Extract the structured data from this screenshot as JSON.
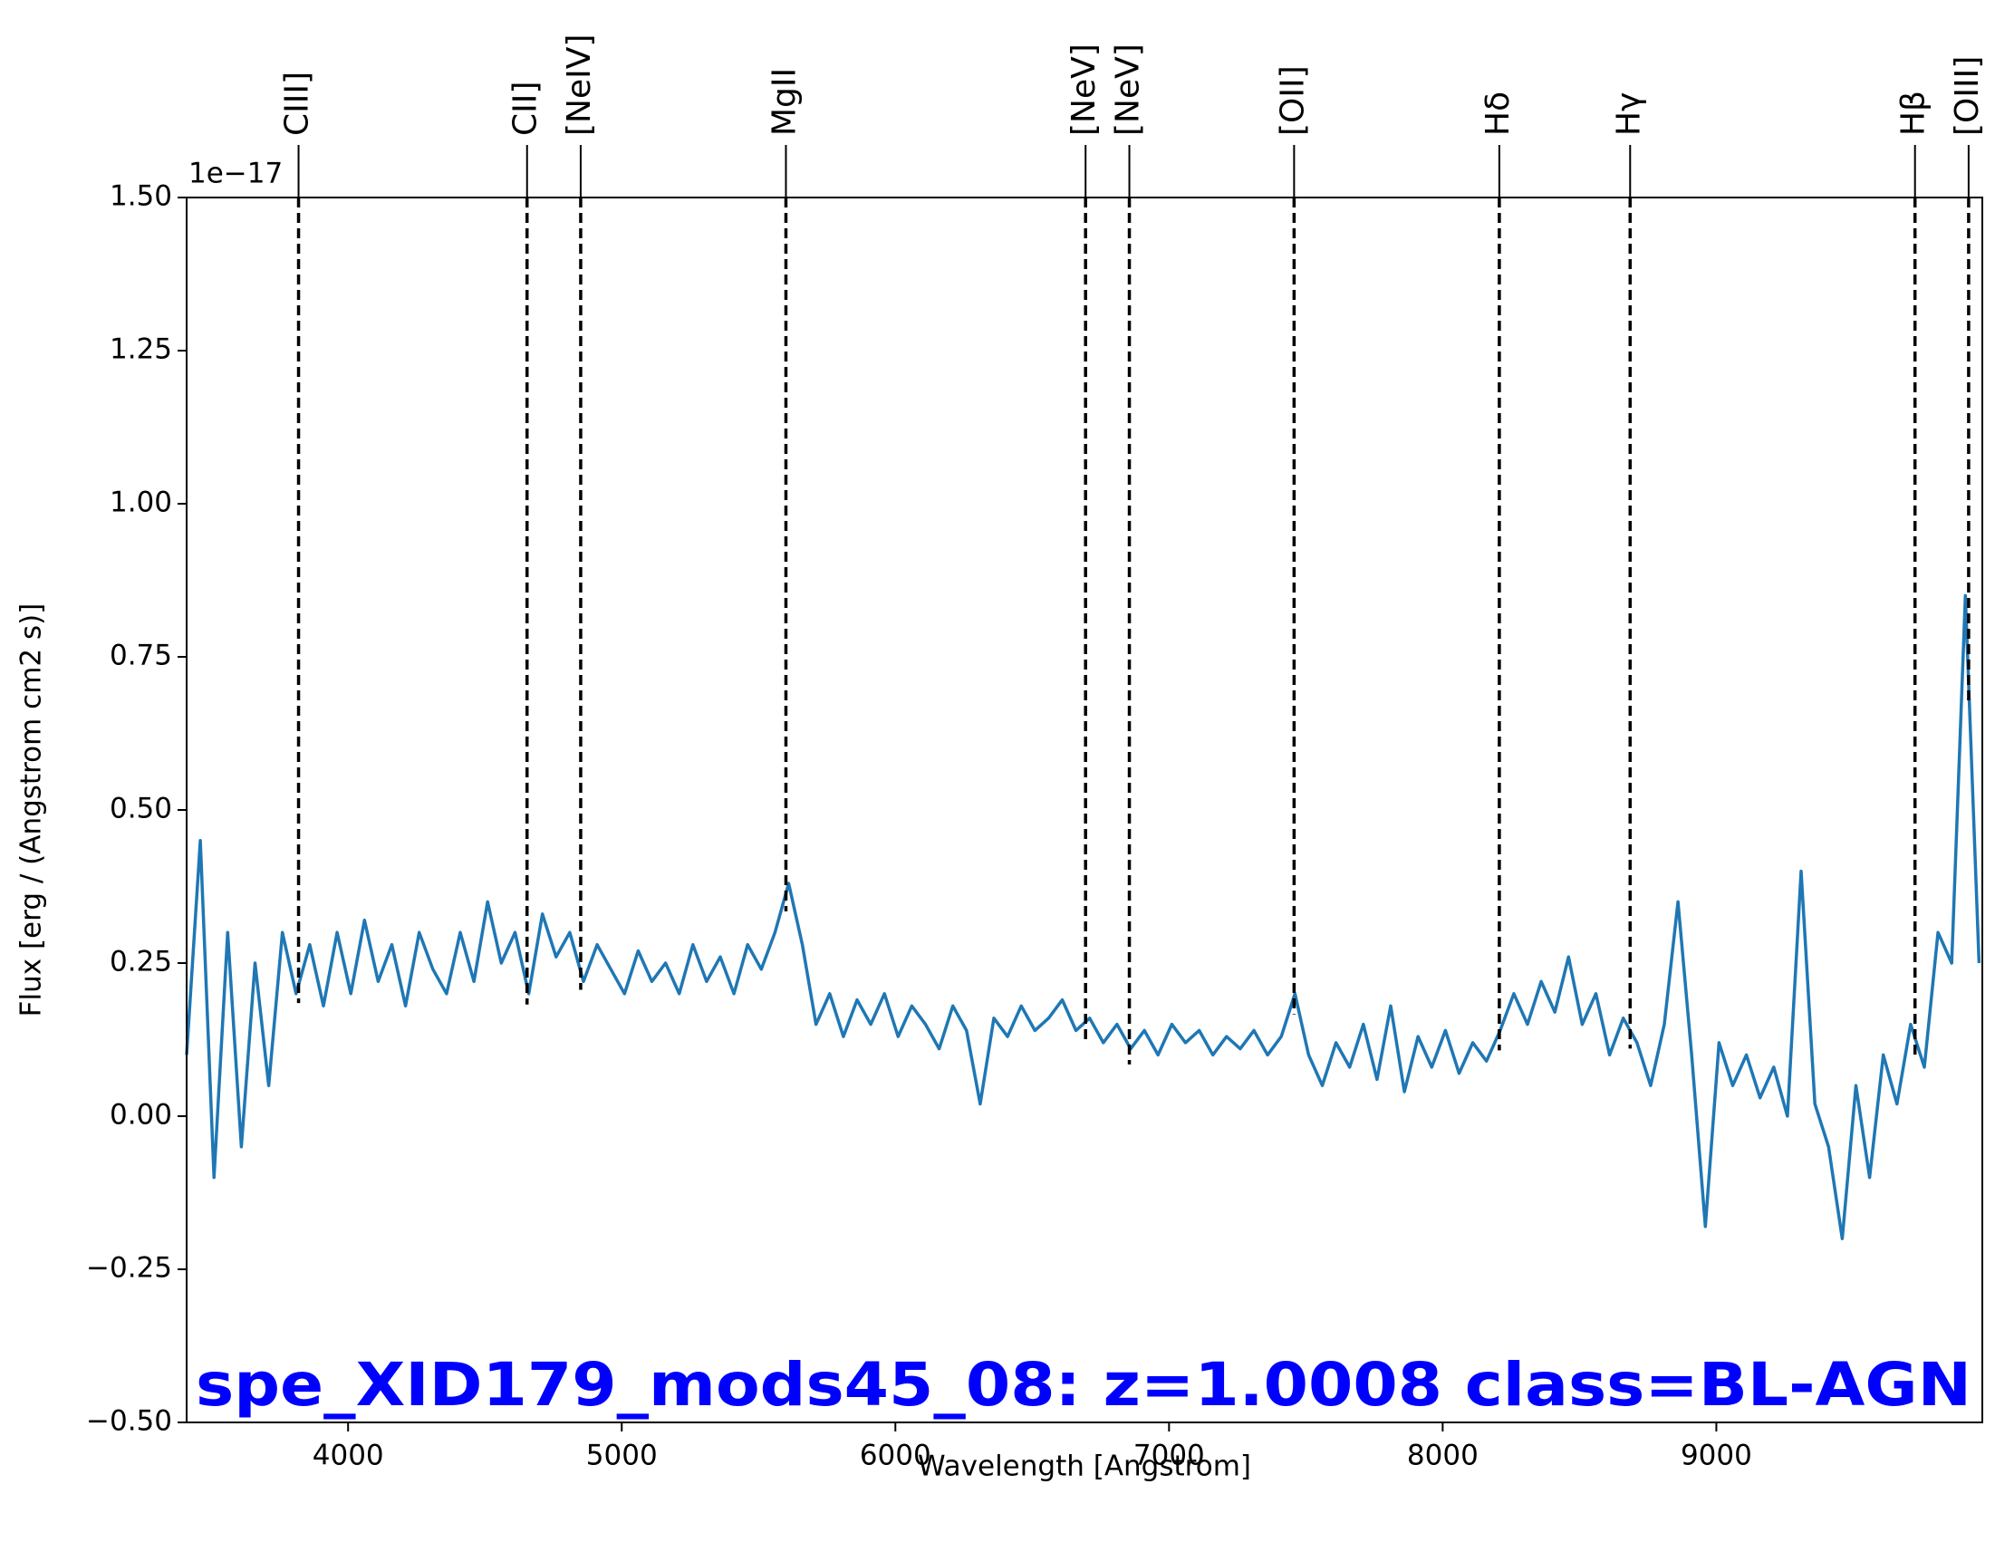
{
  "chart_data": {
    "type": "line",
    "annotation": "spe_XID179_mods45_08: z=1.0008 class=BL-AGN",
    "offset_text": "1e−17",
    "xlabel": "Wavelength [Angstrom]",
    "ylabel": "Flux [erg / (Angstrom cm2 s)]",
    "color": "#1f77b4",
    "xlim": [
      3410,
      9972
    ],
    "xticks": [
      4000,
      5000,
      6000,
      7000,
      8000,
      9000
    ],
    "ylim": [
      -0.5,
      1.5
    ],
    "yticks": [
      {
        "value": -0.5,
        "label": "−0.50"
      },
      {
        "value": -0.25,
        "label": "−0.25"
      },
      {
        "value": 0,
        "label": "0.00"
      },
      0.25,
      {
        "value": 0.5,
        "label": "0.50"
      },
      0.75,
      {
        "value": 1,
        "label": "1.00"
      },
      1.25,
      {
        "value": 1.5,
        "label": "1.50"
      }
    ],
    "grid": false,
    "lines": [
      {
        "label": "CIII]",
        "wavelength": 3819
      },
      {
        "label": "CII]",
        "wavelength": 4654
      },
      {
        "label": "[NeIV]",
        "wavelength": 4850
      },
      {
        "label": "MgII",
        "wavelength": 5600
      },
      {
        "label": "[NeV]",
        "wavelength": 6695
      },
      {
        "label": "[NeV]",
        "wavelength": 6855
      },
      {
        "label": "[OII]",
        "wavelength": 7457
      },
      {
        "label": "Hδ",
        "wavelength": 8207
      },
      {
        "label": "Hγ",
        "wavelength": 8685
      },
      {
        "label": "Hβ",
        "wavelength": 9726
      },
      {
        "label": "[OIII]",
        "wavelength": 9922
      }
    ],
    "x": [
      3410,
      3460,
      3510,
      3560,
      3610,
      3660,
      3710,
      3760,
      3810,
      3860,
      3910,
      3960,
      4010,
      4060,
      4110,
      4160,
      4210,
      4260,
      4310,
      4360,
      4410,
      4460,
      4510,
      4560,
      4610,
      4660,
      4710,
      4760,
      4810,
      4860,
      4910,
      4960,
      5010,
      5060,
      5110,
      5160,
      5210,
      5260,
      5310,
      5360,
      5410,
      5460,
      5510,
      5560,
      5610,
      5660,
      5710,
      5760,
      5810,
      5860,
      5910,
      5960,
      6010,
      6060,
      6110,
      6160,
      6210,
      6260,
      6310,
      6360,
      6410,
      6460,
      6510,
      6560,
      6610,
      6660,
      6710,
      6760,
      6810,
      6860,
      6910,
      6960,
      7010,
      7060,
      7110,
      7160,
      7210,
      7260,
      7310,
      7360,
      7410,
      7460,
      7510,
      7560,
      7610,
      7660,
      7710,
      7760,
      7810,
      7860,
      7910,
      7960,
      8010,
      8060,
      8110,
      8160,
      8210,
      8260,
      8310,
      8360,
      8410,
      8460,
      8510,
      8560,
      8610,
      8660,
      8710,
      8760,
      8810,
      8860,
      8910,
      8960,
      9010,
      9060,
      9110,
      9160,
      9210,
      9260,
      9310,
      9360,
      9410,
      9460,
      9510,
      9560,
      9610,
      9660,
      9710,
      9760,
      9810,
      9860,
      9910,
      9960
    ],
    "values": [
      0.1,
      0.45,
      -0.1,
      0.3,
      -0.05,
      0.25,
      0.05,
      0.3,
      0.2,
      0.28,
      0.18,
      0.3,
      0.2,
      0.32,
      0.22,
      0.28,
      0.18,
      0.3,
      0.24,
      0.2,
      0.3,
      0.22,
      0.35,
      0.25,
      0.3,
      0.2,
      0.33,
      0.26,
      0.3,
      0.22,
      0.28,
      0.24,
      0.2,
      0.27,
      0.22,
      0.25,
      0.2,
      0.28,
      0.22,
      0.26,
      0.2,
      0.28,
      0.24,
      0.3,
      0.38,
      0.28,
      0.15,
      0.2,
      0.13,
      0.19,
      0.15,
      0.2,
      0.13,
      0.18,
      0.15,
      0.11,
      0.18,
      0.14,
      0.02,
      0.16,
      0.13,
      0.18,
      0.14,
      0.16,
      0.19,
      0.14,
      0.16,
      0.12,
      0.15,
      0.11,
      0.14,
      0.1,
      0.15,
      0.12,
      0.14,
      0.1,
      0.13,
      0.11,
      0.14,
      0.1,
      0.13,
      0.2,
      0.1,
      0.05,
      0.12,
      0.08,
      0.15,
      0.06,
      0.18,
      0.04,
      0.13,
      0.08,
      0.14,
      0.07,
      0.12,
      0.09,
      0.14,
      0.2,
      0.15,
      0.22,
      0.17,
      0.26,
      0.15,
      0.2,
      0.1,
      0.16,
      0.12,
      0.05,
      0.15,
      0.35,
      0.1,
      -0.18,
      0.12,
      0.05,
      0.1,
      0.03,
      0.08,
      0.0,
      0.4,
      0.02,
      -0.05,
      -0.2,
      0.05,
      -0.1,
      0.1,
      0.02,
      0.15,
      0.08,
      0.3,
      0.25,
      0.85,
      0.25
    ]
  }
}
